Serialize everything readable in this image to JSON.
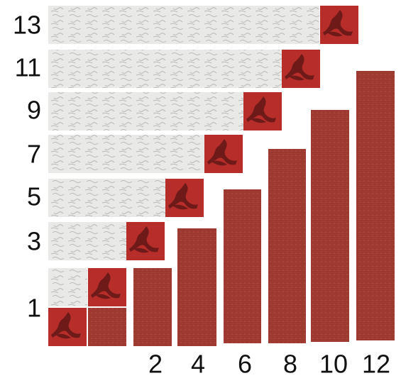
{
  "row_labels": [
    "13",
    "11",
    "9",
    "7",
    "5",
    "3",
    "1"
  ],
  "column_labels": [
    "2",
    "4",
    "6",
    "8",
    "10",
    "12"
  ]
}
